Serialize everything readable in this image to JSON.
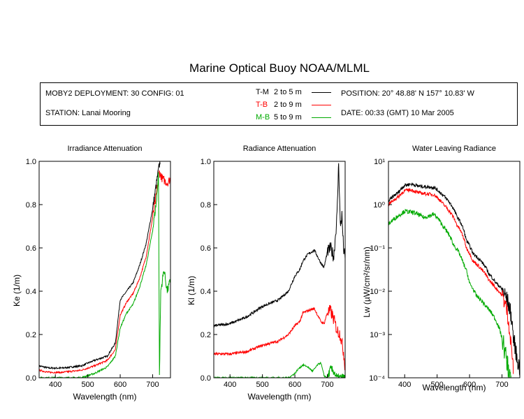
{
  "title": "Marine Optical Buoy NOAA/MLML",
  "info": {
    "deployment": "MOBY2 DEPLOYMENT: 30 CONFIG: 01",
    "station": "STATION: Lanai Mooring",
    "position": "POSITION: 20° 48.88' N   157° 10.83' W",
    "date": "DATE: 00:33 (GMT) 10 Mar 2005"
  },
  "legend": [
    {
      "code": "T-M",
      "range": "2 to 5  m",
      "color": "#000000"
    },
    {
      "code": "T-B",
      "range": "2 to 9  m",
      "color": "#ff0000"
    },
    {
      "code": "M-B",
      "range": "5 to 9  m",
      "color": "#00aa00"
    }
  ],
  "chart_data": [
    {
      "type": "line",
      "title": "Irradiance Attenuation",
      "xlabel": "Wavelength (nm)",
      "ylabel": "Ke  (1/m)",
      "xlim": [
        350,
        755
      ],
      "ylim": [
        0,
        1.0
      ],
      "xticks": [
        "400",
        "500",
        "600",
        "700"
      ],
      "yticks": [
        "0.0",
        "0.2",
        "0.4",
        "0.6",
        "0.8",
        "1.0"
      ],
      "series": [
        {
          "name": "T-M",
          "color": "#000000",
          "noise": 0.004,
          "x": [
            350,
            380,
            420,
            480,
            520,
            560,
            585,
            600,
            620,
            640,
            660,
            680,
            700,
            710,
            718,
            723
          ],
          "y": [
            0.055,
            0.045,
            0.045,
            0.055,
            0.08,
            0.1,
            0.16,
            0.36,
            0.4,
            0.44,
            0.52,
            0.62,
            0.78,
            0.88,
            0.96,
            1.0
          ]
        },
        {
          "name": "T-B",
          "color": "#ff0000",
          "noise": 0.004,
          "x": [
            350,
            380,
            420,
            480,
            520,
            560,
            585,
            600,
            620,
            640,
            660,
            680,
            700,
            712,
            720,
            730,
            745,
            755
          ],
          "y": [
            0.035,
            0.025,
            0.025,
            0.035,
            0.055,
            0.08,
            0.13,
            0.29,
            0.35,
            0.39,
            0.46,
            0.56,
            0.74,
            0.85,
            0.95,
            0.92,
            0.9,
            0.92
          ]
        },
        {
          "name": "M-B",
          "color": "#00aa00",
          "noise": 0.004,
          "x": [
            350,
            420,
            480,
            520,
            560,
            585,
            600,
            620,
            640,
            660,
            680,
            700,
            712,
            718,
            721,
            725,
            735,
            745,
            755
          ],
          "y": [
            0.0,
            0.0,
            0.0,
            0.02,
            0.05,
            0.1,
            0.23,
            0.3,
            0.34,
            0.42,
            0.52,
            0.68,
            0.82,
            0.95,
            0.0,
            0.4,
            0.5,
            0.4,
            0.45
          ]
        }
      ]
    },
    {
      "type": "line",
      "title": "Radiance Attenuation",
      "xlabel": "Wavelength (nm)",
      "ylabel": "Kl  (1/m)",
      "xlim": [
        350,
        755
      ],
      "ylim": [
        0,
        1.0
      ],
      "xticks": [
        "400",
        "500",
        "600",
        "700"
      ],
      "yticks": [
        "0.0",
        "0.2",
        "0.4",
        "0.6",
        "0.8",
        "1.0"
      ],
      "series": [
        {
          "name": "T-M",
          "color": "#000000",
          "noise": 0.006,
          "x": [
            350,
            400,
            450,
            500,
            550,
            580,
            600,
            615,
            625,
            640,
            660,
            680,
            690,
            700,
            710,
            720,
            730,
            735,
            740,
            745,
            750,
            755
          ],
          "y": [
            0.24,
            0.25,
            0.28,
            0.33,
            0.36,
            0.4,
            0.47,
            0.5,
            0.54,
            0.57,
            0.59,
            0.53,
            0.51,
            0.58,
            0.6,
            0.56,
            0.75,
            1.0,
            0.7,
            0.75,
            0.6,
            0.55
          ]
        },
        {
          "name": "T-B",
          "color": "#ff0000",
          "noise": 0.006,
          "x": [
            350,
            400,
            450,
            500,
            550,
            580,
            600,
            615,
            625,
            640,
            660,
            680,
            690,
            700,
            710,
            720,
            730,
            740,
            750,
            755
          ],
          "y": [
            0.11,
            0.11,
            0.12,
            0.15,
            0.17,
            0.2,
            0.24,
            0.26,
            0.3,
            0.31,
            0.32,
            0.26,
            0.25,
            0.3,
            0.31,
            0.27,
            0.22,
            0.2,
            0.12,
            0.05
          ]
        },
        {
          "name": "M-B",
          "color": "#00aa00",
          "noise": 0.004,
          "x": [
            350,
            550,
            580,
            600,
            610,
            625,
            640,
            655,
            670,
            680,
            690,
            700,
            710,
            720,
            730,
            740,
            750,
            755
          ],
          "y": [
            0.0,
            0.0,
            0.0,
            0.02,
            0.04,
            0.06,
            0.05,
            0.03,
            0.06,
            0.07,
            0.01,
            0.0,
            0.04,
            0.03,
            0.0,
            0.0,
            0.0,
            0.0
          ]
        }
      ]
    },
    {
      "type": "line",
      "title": "Water Leaving Radiance",
      "xlabel": "Wavelength (nm)",
      "ylabel": "Lw  (µW/cm²/sr/nm)",
      "log_y": true,
      "xlim": [
        350,
        755
      ],
      "ylim": [
        0.0001,
        10
      ],
      "xticks": [
        "400",
        "500",
        "600",
        "700"
      ],
      "yticks": [
        "10⁻⁴",
        "10⁻³",
        "10⁻²",
        "10⁻¹",
        "10⁰",
        "10¹"
      ],
      "series": [
        {
          "name": "T-M",
          "color": "#000000",
          "noise": 0.04,
          "x": [
            350,
            380,
            400,
            420,
            440,
            460,
            490,
            520,
            560,
            590,
            610,
            640,
            660,
            680,
            700,
            720,
            735,
            745,
            755
          ],
          "y": [
            1.2,
            1.9,
            2.8,
            3.0,
            2.7,
            2.6,
            2.5,
            1.6,
            0.55,
            0.15,
            0.075,
            0.045,
            0.025,
            0.016,
            0.011,
            0.005,
            0.0008,
            0.0003,
            0.00015
          ]
        },
        {
          "name": "T-B",
          "color": "#ff0000",
          "noise": 0.04,
          "x": [
            350,
            380,
            400,
            420,
            440,
            460,
            490,
            520,
            560,
            590,
            610,
            640,
            660,
            680,
            700,
            715,
            725,
            735
          ],
          "y": [
            1.0,
            1.5,
            2.1,
            2.2,
            1.9,
            1.8,
            1.7,
            1.0,
            0.35,
            0.1,
            0.05,
            0.03,
            0.018,
            0.012,
            0.008,
            0.0035,
            0.0008,
            0.0001
          ]
        },
        {
          "name": "M-B",
          "color": "#00aa00",
          "noise": 0.05,
          "x": [
            350,
            380,
            400,
            430,
            460,
            490,
            520,
            550,
            580,
            600,
            620,
            650,
            680,
            700,
            710,
            720,
            728
          ],
          "y": [
            0.35,
            0.55,
            0.7,
            0.65,
            0.5,
            0.6,
            0.3,
            0.12,
            0.045,
            0.015,
            0.008,
            0.0045,
            0.0022,
            0.0008,
            0.00035,
            0.00015,
            0.0001
          ]
        }
      ]
    }
  ]
}
